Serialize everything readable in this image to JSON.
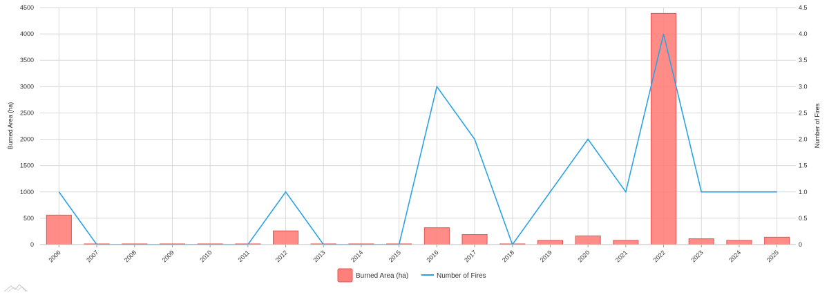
{
  "chart_data": {
    "type": "bar",
    "categories": [
      "2006",
      "2007",
      "2008",
      "2009",
      "2010",
      "2011",
      "2012",
      "2013",
      "2014",
      "2015",
      "2016",
      "2017",
      "2018",
      "2019",
      "2020",
      "2021",
      "2022",
      "2023",
      "2024",
      "2025"
    ],
    "series": [
      {
        "name": "Burned Area (ha)",
        "type": "bar",
        "axis": "left",
        "color": "#ff7f7a",
        "values": [
          560,
          0,
          0,
          0,
          0,
          0,
          260,
          0,
          0,
          0,
          320,
          190,
          0,
          80,
          165,
          80,
          4390,
          110,
          80,
          140
        ]
      },
      {
        "name": "Number of Fires",
        "type": "line",
        "axis": "right",
        "color": "#2ba2e6",
        "values": [
          1,
          0,
          0,
          0,
          0,
          0,
          1,
          0,
          0,
          0,
          3,
          2,
          0,
          1,
          2,
          1,
          4,
          1,
          1,
          1
        ]
      }
    ],
    "ylabel": "Burned Area (ha)",
    "y2label": "Number of Fires",
    "ylim": [
      0,
      4500
    ],
    "y2lim": [
      0,
      4.5
    ],
    "yticks": [
      "0",
      "500",
      "1000",
      "1500",
      "2000",
      "2500",
      "3000",
      "3500",
      "4000",
      "4500"
    ],
    "y2ticks": [
      "0",
      "0.5",
      "1.0",
      "1.5",
      "2.0",
      "2.5",
      "3.0",
      "3.5",
      "4.0",
      "4.5"
    ],
    "grid": true,
    "legend_position": "bottom-center"
  }
}
